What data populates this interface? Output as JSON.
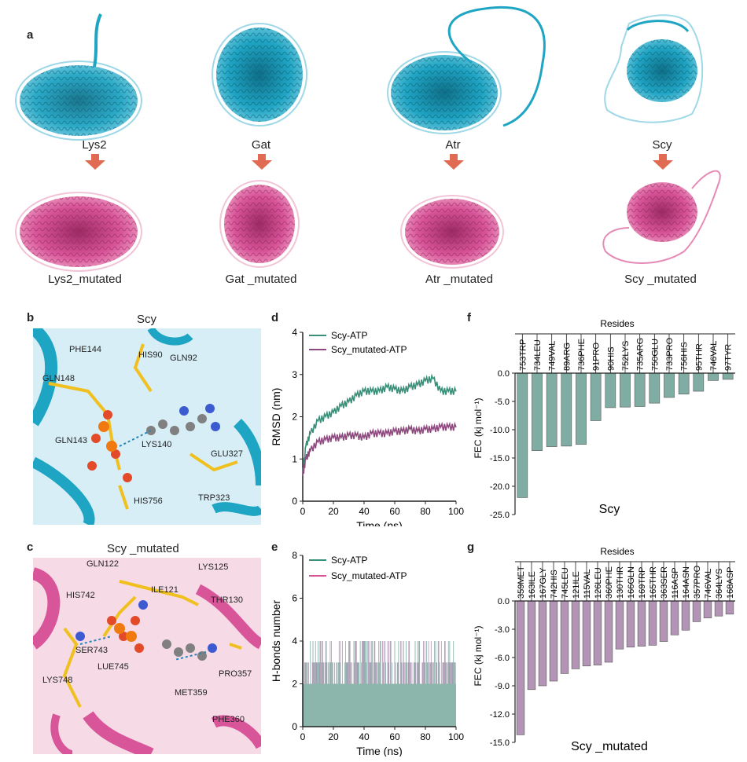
{
  "panel_a": {
    "letter": "a",
    "proteins": [
      {
        "name": "Lys2",
        "mutated": "Lys2_mutated"
      },
      {
        "name": "Gat",
        "mutated": "Gat _mutated"
      },
      {
        "name": "Atr",
        "mutated": "Atr _mutated"
      },
      {
        "name": "Scy",
        "mutated": "Scy _mutated"
      }
    ]
  },
  "panel_b": {
    "letter": "b",
    "title": "Scy",
    "residues": [
      "PHE144",
      "HIS90",
      "GLN92",
      "GLN148",
      "GLN143",
      "LYS140",
      "GLU327",
      "HIS756",
      "TRP323"
    ]
  },
  "panel_c": {
    "letter": "c",
    "title": "Scy _mutated",
    "residues": [
      "GLN122",
      "LYS125",
      "ILE121",
      "HIS742",
      "THR130",
      "SER743",
      "LUE745",
      "PRO357",
      "LYS748",
      "MET359",
      "PHE360"
    ]
  },
  "colors": {
    "wild": "#1fa5c4",
    "mutated": "#d9559a",
    "rmsd_wild": "#3a8f78",
    "rmsd_mut": "#8e4a7e",
    "bar_wild": "#7fada3",
    "bar_mut": "#b394b6",
    "arrow": "#e06a52",
    "ligand_yellow": "#f0c020"
  },
  "chart_data": [
    {
      "panel": "d",
      "type": "line",
      "xlabel": "Time (ns)",
      "ylabel": "RMSD (nm)",
      "xlim": [
        0,
        100
      ],
      "ylim": [
        0,
        4
      ],
      "xticks": [
        "0",
        "20",
        "40",
        "60",
        "80",
        "100"
      ],
      "yticks": [
        "0",
        "1",
        "2",
        "3",
        "4"
      ],
      "legend": "top-left",
      "series": [
        {
          "name": "Scy-ATP",
          "x": [
            0,
            2,
            5,
            10,
            15,
            20,
            25,
            30,
            35,
            40,
            45,
            50,
            55,
            60,
            65,
            70,
            75,
            80,
            85,
            90,
            95,
            100
          ],
          "values": [
            0.6,
            1.3,
            1.6,
            1.9,
            2.0,
            2.1,
            2.25,
            2.35,
            2.5,
            2.6,
            2.6,
            2.6,
            2.7,
            2.65,
            2.6,
            2.7,
            2.75,
            2.85,
            2.9,
            2.6,
            2.6,
            2.6
          ]
        },
        {
          "name": "Scy_mutated-ATP",
          "x": [
            0,
            2,
            5,
            10,
            15,
            20,
            25,
            30,
            35,
            40,
            45,
            50,
            55,
            60,
            65,
            70,
            75,
            80,
            85,
            90,
            95,
            100
          ],
          "values": [
            0.6,
            1.0,
            1.2,
            1.4,
            1.45,
            1.5,
            1.5,
            1.55,
            1.55,
            1.5,
            1.6,
            1.6,
            1.6,
            1.65,
            1.65,
            1.7,
            1.65,
            1.7,
            1.7,
            1.75,
            1.75,
            1.75
          ]
        }
      ]
    },
    {
      "panel": "e",
      "type": "bar",
      "xlabel": "Time (ns)",
      "ylabel": "H-bonds number",
      "xlim": [
        0,
        100
      ],
      "ylim": [
        0,
        8
      ],
      "xticks": [
        "0",
        "20",
        "40",
        "60",
        "80",
        "100"
      ],
      "yticks": [
        "0",
        "2",
        "4",
        "6",
        "8"
      ],
      "legend": "top-left",
      "series": [
        {
          "name": "Scy-ATP",
          "typical": 2,
          "max": 4
        },
        {
          "name": "Scy_mutated-ATP",
          "typical": 3,
          "max": 4
        }
      ]
    },
    {
      "panel": "f",
      "type": "bar",
      "title": "Resides",
      "xlabel": "Scy",
      "ylabel": "FEC (kj mol⁻¹)",
      "ylim": [
        -25,
        0
      ],
      "yticks": [
        "0.0",
        "-5.0",
        "-10.0",
        "-15.0",
        "-20.0",
        "-25.0"
      ],
      "categories": [
        "753TRP",
        "734LEU",
        "749VAL",
        "89ARG",
        "736PHE",
        "91PRO",
        "90HIS",
        "752LYS",
        "735ARG",
        "750GLU",
        "733PRO",
        "756HIS",
        "95THR",
        "746VAL",
        "97TYR"
      ],
      "values": [
        -22.0,
        -13.7,
        -13.0,
        -12.9,
        -12.6,
        -8.4,
        -6.1,
        -6.0,
        -5.9,
        -5.3,
        -4.3,
        -3.7,
        -3.2,
        -1.3,
        -1.1
      ]
    },
    {
      "panel": "g",
      "type": "bar",
      "title": "Resides",
      "xlabel": "Scy _mutated",
      "ylabel": "FEC (kj mol⁻¹)",
      "ylim": [
        -15,
        0
      ],
      "yticks": [
        "0.0",
        "-3.0",
        "-6.0",
        "-9.0",
        "-12.0",
        "-15.0"
      ],
      "categories": [
        "359MET",
        "163ILE",
        "167GLY",
        "742HIS",
        "745LEU",
        "121ILE",
        "115VAL",
        "126LEU",
        "360PHE",
        "130THR",
        "166GLN",
        "169TRP",
        "165THR",
        "363SER",
        "116ASP",
        "164ASN",
        "357PRO",
        "746VAL",
        "364LYS",
        "168ASP"
      ],
      "values": [
        -14.2,
        -9.4,
        -9.0,
        -8.5,
        -7.7,
        -7.2,
        -6.9,
        -6.8,
        -6.5,
        -5.1,
        -4.9,
        -4.8,
        -4.7,
        -4.3,
        -3.6,
        -3.1,
        -2.2,
        -1.8,
        -1.6,
        -1.4
      ]
    }
  ]
}
